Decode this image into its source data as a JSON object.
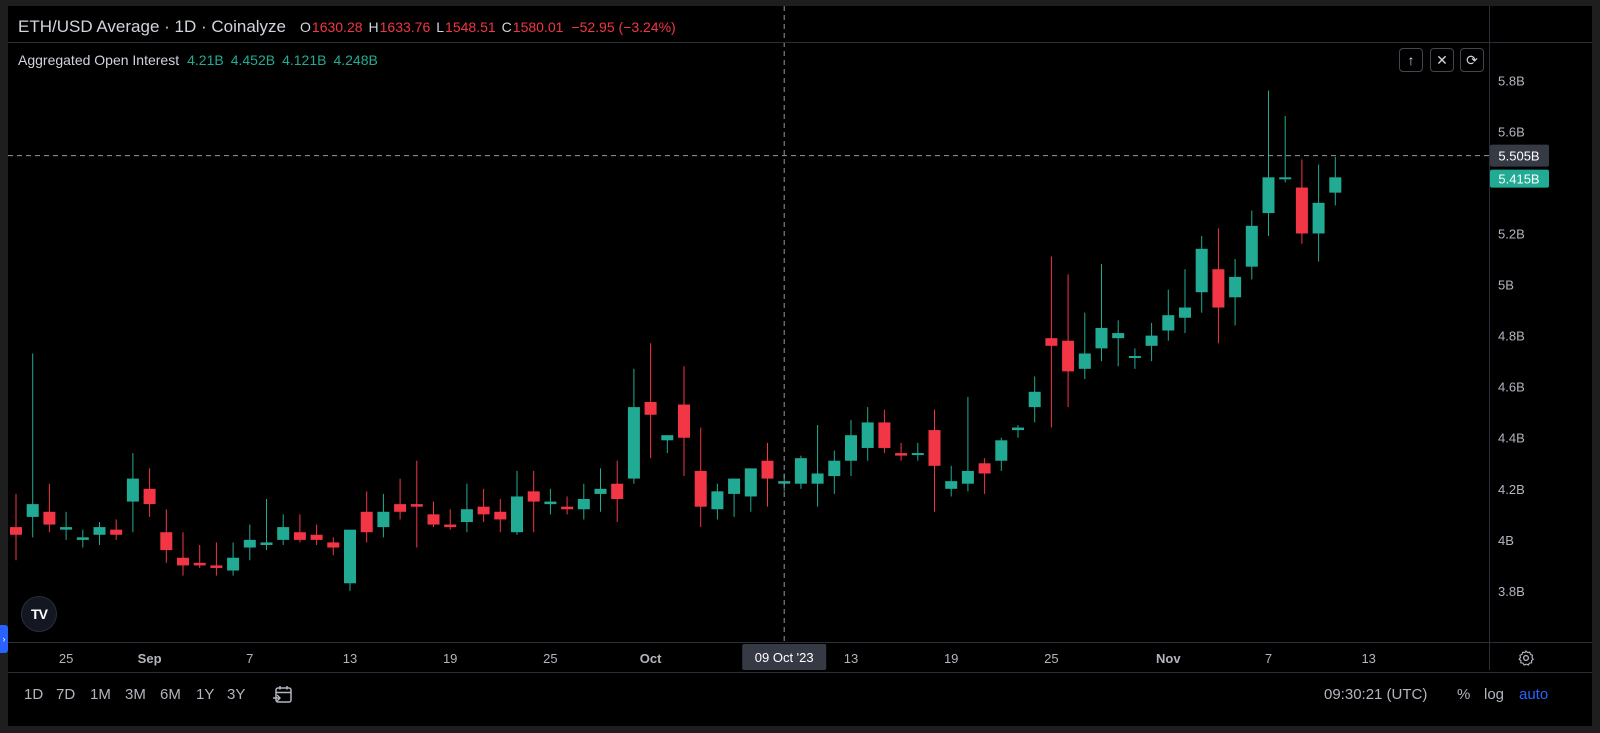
{
  "header": {
    "symbol": "ETH/USD Average · 1D · Coinalyze",
    "o_label": "O",
    "o_value": "1630.28",
    "h_label": "H",
    "h_value": "1633.76",
    "l_label": "L",
    "l_value": "1548.51",
    "c_label": "C",
    "c_value": "1580.01",
    "change": "−52.95 (−3.24%)"
  },
  "indicator": {
    "name": "Aggregated Open Interest",
    "values": [
      "4.21B",
      "4.452B",
      "4.121B",
      "4.248B"
    ]
  },
  "controls": {
    "up": "↑",
    "close": "✕",
    "cycle": "⟳"
  },
  "logo_text": "TV",
  "colors": {
    "up": "#22ab94",
    "down": "#f23645",
    "bg": "#000000",
    "text": "#b2b5be"
  },
  "chart_data": {
    "type": "candlestick",
    "title": "Aggregated Open Interest",
    "y_unit": "B",
    "ylim": [
      3.6,
      5.95
    ],
    "y_ticks": [
      "3.8B",
      "4B",
      "4.2B",
      "4.4B",
      "4.6B",
      "4.8B",
      "5B",
      "5.2B",
      "5.4B",
      "5.6B",
      "5.8B"
    ],
    "y_tick_values": [
      3.8,
      4.0,
      4.2,
      4.4,
      4.6,
      4.8,
      5.0,
      5.2,
      5.4,
      5.6,
      5.8
    ],
    "x_ticks": [
      "25",
      "Sep",
      "7",
      "13",
      "19",
      "25",
      "Oct",
      "13",
      "19",
      "25",
      "Nov",
      "7",
      "13"
    ],
    "crosshair_price_label": "5.505B",
    "crosshair_date_label": "09 Oct '23",
    "crosshair_value": 5.505,
    "crosshair_date": "2023-10-09",
    "last_price_label": "5.415B",
    "last_value": 5.415,
    "candles": [
      {
        "date": "2023-08-24",
        "o": 4.05,
        "h": 4.18,
        "l": 3.92,
        "c": 4.02
      },
      {
        "date": "2023-08-25",
        "o": 4.09,
        "h": 4.73,
        "l": 4.01,
        "c": 4.14
      },
      {
        "date": "2023-08-26",
        "o": 4.11,
        "h": 4.22,
        "l": 4.03,
        "c": 4.06
      },
      {
        "date": "2023-08-27",
        "o": 4.04,
        "h": 4.11,
        "l": 4.0,
        "c": 4.05
      },
      {
        "date": "2023-08-28",
        "o": 4.0,
        "h": 4.04,
        "l": 3.97,
        "c": 4.01
      },
      {
        "date": "2023-08-29",
        "o": 4.02,
        "h": 4.07,
        "l": 3.98,
        "c": 4.05
      },
      {
        "date": "2023-08-30",
        "o": 4.04,
        "h": 4.08,
        "l": 4.0,
        "c": 4.02
      },
      {
        "date": "2023-08-31",
        "o": 4.15,
        "h": 4.34,
        "l": 4.03,
        "c": 4.24
      },
      {
        "date": "2023-09-01",
        "o": 4.2,
        "h": 4.28,
        "l": 4.09,
        "c": 4.14
      },
      {
        "date": "2023-09-02",
        "o": 4.03,
        "h": 4.12,
        "l": 3.91,
        "c": 3.96
      },
      {
        "date": "2023-09-03",
        "o": 3.93,
        "h": 4.03,
        "l": 3.86,
        "c": 3.9
      },
      {
        "date": "2023-09-04",
        "o": 3.91,
        "h": 3.98,
        "l": 3.89,
        "c": 3.9
      },
      {
        "date": "2023-09-05",
        "o": 3.9,
        "h": 3.99,
        "l": 3.86,
        "c": 3.89
      },
      {
        "date": "2023-09-06",
        "o": 3.88,
        "h": 3.99,
        "l": 3.86,
        "c": 3.93
      },
      {
        "date": "2023-09-07",
        "o": 3.97,
        "h": 4.06,
        "l": 3.92,
        "c": 4.0
      },
      {
        "date": "2023-09-08",
        "o": 3.98,
        "h": 4.16,
        "l": 3.96,
        "c": 3.99
      },
      {
        "date": "2023-09-09",
        "o": 4.0,
        "h": 4.1,
        "l": 3.98,
        "c": 4.05
      },
      {
        "date": "2023-09-10",
        "o": 4.03,
        "h": 4.1,
        "l": 3.99,
        "c": 4.0
      },
      {
        "date": "2023-09-11",
        "o": 4.02,
        "h": 4.06,
        "l": 3.98,
        "c": 4.0
      },
      {
        "date": "2023-09-12",
        "o": 3.99,
        "h": 4.01,
        "l": 3.94,
        "c": 3.97
      },
      {
        "date": "2023-09-13",
        "o": 3.83,
        "h": 4.03,
        "l": 3.8,
        "c": 4.04
      },
      {
        "date": "2023-09-14",
        "o": 4.11,
        "h": 4.19,
        "l": 3.99,
        "c": 4.03
      },
      {
        "date": "2023-09-15",
        "o": 4.05,
        "h": 4.18,
        "l": 4.01,
        "c": 4.11
      },
      {
        "date": "2023-09-16",
        "o": 4.14,
        "h": 4.24,
        "l": 4.08,
        "c": 4.11
      },
      {
        "date": "2023-09-17",
        "o": 4.14,
        "h": 4.31,
        "l": 3.97,
        "c": 4.13
      },
      {
        "date": "2023-09-18",
        "o": 4.1,
        "h": 4.15,
        "l": 4.05,
        "c": 4.06
      },
      {
        "date": "2023-09-19",
        "o": 4.06,
        "h": 4.12,
        "l": 4.04,
        "c": 4.05
      },
      {
        "date": "2023-09-20",
        "o": 4.07,
        "h": 4.22,
        "l": 4.03,
        "c": 4.12
      },
      {
        "date": "2023-09-21",
        "o": 4.13,
        "h": 4.2,
        "l": 4.07,
        "c": 4.1
      },
      {
        "date": "2023-09-22",
        "o": 4.11,
        "h": 4.16,
        "l": 4.03,
        "c": 4.08
      },
      {
        "date": "2023-09-23",
        "o": 4.03,
        "h": 4.27,
        "l": 4.02,
        "c": 4.17
      },
      {
        "date": "2023-09-24",
        "o": 4.19,
        "h": 4.27,
        "l": 4.03,
        "c": 4.15
      },
      {
        "date": "2023-09-25",
        "o": 4.14,
        "h": 4.2,
        "l": 4.1,
        "c": 4.15
      },
      {
        "date": "2023-09-26",
        "o": 4.13,
        "h": 4.17,
        "l": 4.1,
        "c": 4.12
      },
      {
        "date": "2023-09-27",
        "o": 4.12,
        "h": 4.22,
        "l": 4.08,
        "c": 4.16
      },
      {
        "date": "2023-09-28",
        "o": 4.18,
        "h": 4.28,
        "l": 4.11,
        "c": 4.2
      },
      {
        "date": "2023-09-29",
        "o": 4.22,
        "h": 4.31,
        "l": 4.07,
        "c": 4.16
      },
      {
        "date": "2023-09-30",
        "o": 4.24,
        "h": 4.67,
        "l": 4.22,
        "c": 4.52
      },
      {
        "date": "2023-10-01",
        "o": 4.54,
        "h": 4.77,
        "l": 4.32,
        "c": 4.49
      },
      {
        "date": "2023-10-02",
        "o": 4.39,
        "h": 4.41,
        "l": 4.34,
        "c": 4.41
      },
      {
        "date": "2023-10-03",
        "o": 4.53,
        "h": 4.68,
        "l": 4.25,
        "c": 4.4
      },
      {
        "date": "2023-10-04",
        "o": 4.27,
        "h": 4.44,
        "l": 4.05,
        "c": 4.13
      },
      {
        "date": "2023-10-05",
        "o": 4.12,
        "h": 4.22,
        "l": 4.08,
        "c": 4.19
      },
      {
        "date": "2023-10-06",
        "o": 4.18,
        "h": 4.24,
        "l": 4.09,
        "c": 4.24
      },
      {
        "date": "2023-10-07",
        "o": 4.17,
        "h": 4.28,
        "l": 4.11,
        "c": 4.28
      },
      {
        "date": "2023-10-08",
        "o": 4.31,
        "h": 4.38,
        "l": 4.13,
        "c": 4.24
      },
      {
        "date": "2023-10-09",
        "o": 4.22,
        "h": 4.26,
        "l": 4.19,
        "c": 4.23
      },
      {
        "date": "2023-10-10",
        "o": 4.22,
        "h": 4.33,
        "l": 4.2,
        "c": 4.32
      },
      {
        "date": "2023-10-11",
        "o": 4.22,
        "h": 4.45,
        "l": 4.13,
        "c": 4.26
      },
      {
        "date": "2023-10-12",
        "o": 4.25,
        "h": 4.35,
        "l": 4.18,
        "c": 4.31
      },
      {
        "date": "2023-10-13",
        "o": 4.31,
        "h": 4.47,
        "l": 4.25,
        "c": 4.41
      },
      {
        "date": "2023-10-14",
        "o": 4.36,
        "h": 4.52,
        "l": 4.31,
        "c": 4.46
      },
      {
        "date": "2023-10-15",
        "o": 4.46,
        "h": 4.51,
        "l": 4.34,
        "c": 4.36
      },
      {
        "date": "2023-10-16",
        "o": 4.34,
        "h": 4.38,
        "l": 4.31,
        "c": 4.33
      },
      {
        "date": "2023-10-17",
        "o": 4.34,
        "h": 4.38,
        "l": 4.31,
        "c": 4.34
      },
      {
        "date": "2023-10-18",
        "o": 4.43,
        "h": 4.51,
        "l": 4.11,
        "c": 4.29
      },
      {
        "date": "2023-10-19",
        "o": 4.2,
        "h": 4.29,
        "l": 4.17,
        "c": 4.23
      },
      {
        "date": "2023-10-20",
        "o": 4.22,
        "h": 4.56,
        "l": 4.19,
        "c": 4.27
      },
      {
        "date": "2023-10-21",
        "o": 4.3,
        "h": 4.32,
        "l": 4.18,
        "c": 4.26
      },
      {
        "date": "2023-10-22",
        "o": 4.31,
        "h": 4.4,
        "l": 4.27,
        "c": 4.39
      },
      {
        "date": "2023-10-23",
        "o": 4.43,
        "h": 4.45,
        "l": 4.4,
        "c": 4.44
      },
      {
        "date": "2023-10-24",
        "o": 4.52,
        "h": 4.64,
        "l": 4.46,
        "c": 4.58
      },
      {
        "date": "2023-10-25",
        "o": 4.79,
        "h": 5.11,
        "l": 4.44,
        "c": 4.76
      },
      {
        "date": "2023-10-26",
        "o": 4.78,
        "h": 5.04,
        "l": 4.52,
        "c": 4.66
      },
      {
        "date": "2023-10-27",
        "o": 4.67,
        "h": 4.89,
        "l": 4.63,
        "c": 4.73
      },
      {
        "date": "2023-10-28",
        "o": 4.75,
        "h": 5.08,
        "l": 4.7,
        "c": 4.83
      },
      {
        "date": "2023-10-29",
        "o": 4.79,
        "h": 4.86,
        "l": 4.68,
        "c": 4.81
      },
      {
        "date": "2023-10-30",
        "o": 4.72,
        "h": 4.75,
        "l": 4.67,
        "c": 4.72
      },
      {
        "date": "2023-10-31",
        "o": 4.76,
        "h": 4.85,
        "l": 4.7,
        "c": 4.8
      },
      {
        "date": "2023-11-01",
        "o": 4.82,
        "h": 4.98,
        "l": 4.78,
        "c": 4.88
      },
      {
        "date": "2023-11-02",
        "o": 4.87,
        "h": 5.06,
        "l": 4.81,
        "c": 4.91
      },
      {
        "date": "2023-11-03",
        "o": 4.97,
        "h": 5.19,
        "l": 4.89,
        "c": 5.14
      },
      {
        "date": "2023-11-04",
        "o": 5.06,
        "h": 5.22,
        "l": 4.77,
        "c": 4.91
      },
      {
        "date": "2023-11-05",
        "o": 4.95,
        "h": 5.1,
        "l": 4.84,
        "c": 5.03
      },
      {
        "date": "2023-11-06",
        "o": 5.07,
        "h": 5.29,
        "l": 5.02,
        "c": 5.23
      },
      {
        "date": "2023-11-07",
        "o": 5.28,
        "h": 5.76,
        "l": 5.19,
        "c": 5.42
      },
      {
        "date": "2023-11-08",
        "o": 5.42,
        "h": 5.66,
        "l": 5.4,
        "c": 5.42
      },
      {
        "date": "2023-11-09",
        "o": 5.38,
        "h": 5.49,
        "l": 5.16,
        "c": 5.2
      },
      {
        "date": "2023-11-10",
        "o": 5.2,
        "h": 5.47,
        "l": 5.09,
        "c": 5.32
      },
      {
        "date": "2023-11-11",
        "o": 5.36,
        "h": 5.5,
        "l": 5.31,
        "c": 5.42
      }
    ]
  },
  "timeframes": [
    "1D",
    "7D",
    "1M",
    "3M",
    "6M",
    "1Y",
    "3Y"
  ],
  "clock": "09:30:21 (UTC)",
  "scale_options": {
    "percent": "%",
    "log": "log",
    "auto": "auto"
  }
}
